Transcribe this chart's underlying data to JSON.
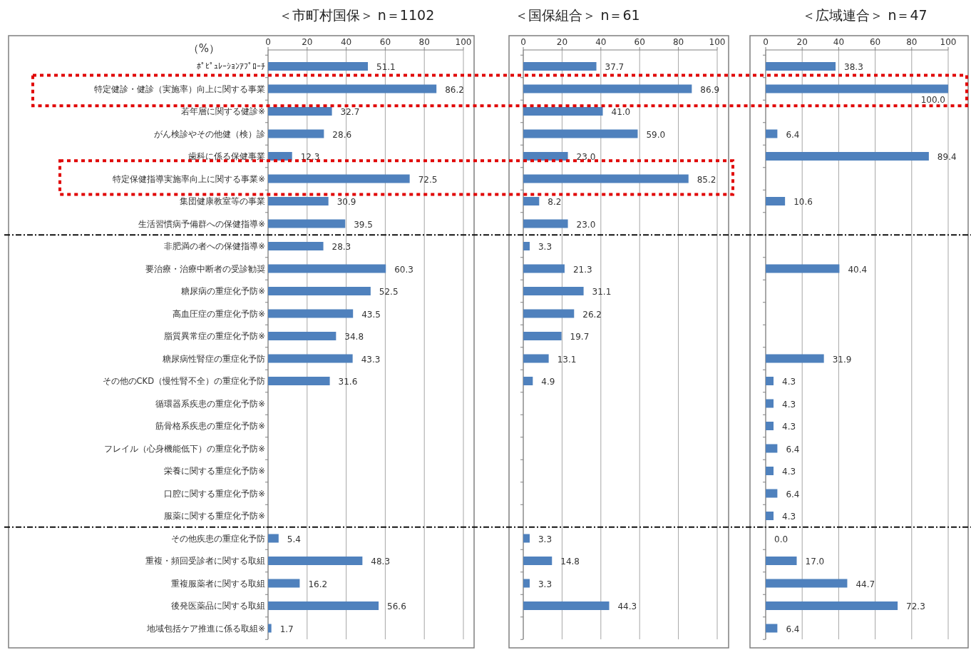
{
  "chart_data": [
    {
      "type": "bar",
      "orientation": "horizontal",
      "title": "＜市町村国保＞ n＝1102",
      "xlabel": "（%）",
      "color": "#4f81bd",
      "xlim": [
        0,
        100
      ],
      "xticks": [
        0,
        20,
        40,
        60,
        80,
        100
      ],
      "grid": "x",
      "categories": [
        "ﾎﾟﾋﾟｭﾚｰｼｮﾝｱﾌﾟﾛｰﾁ",
        "特定健診・健診（実施率）向上に関する事業",
        "若年層に関する健診※",
        "がん検診やその他健（検）診",
        "歯科に係る保健事業",
        "特定保健指導実施率向上に関する事業※",
        "集団健康教室等の事業",
        "生活習慣病予備群への保健指導※",
        "非肥満の者への保健指導※",
        "要治療・治療中断者の受診勧奨",
        "糖尿病の重症化予防※",
        "高血圧症の重症化予防※",
        "脂質異常症の重症化予防※",
        "糖尿病性腎症の重症化予防",
        "その他のCKD（慢性腎不全）の重症化予防",
        "循環器系疾患の重症化予防※",
        "筋骨格系疾患の重症化予防※",
        "フレイル（心身機能低下）の重症化予防※",
        "栄養に関する重症化予防※",
        "口腔に関する重症化予防※",
        "服薬に関する重症化予防※",
        "その他疾患の重症化予防",
        "重複・頻回受診者に関する取組",
        "重複服薬者に関する取組",
        "後発医薬品に関する取組",
        "地域包括ケア推進に係る取組※"
      ],
      "values": [
        51.1,
        86.2,
        32.7,
        28.6,
        12.3,
        72.5,
        30.9,
        39.5,
        28.3,
        60.3,
        52.5,
        43.5,
        34.8,
        43.3,
        31.6,
        null,
        null,
        null,
        null,
        null,
        null,
        5.4,
        48.3,
        16.2,
        56.6,
        1.7
      ],
      "value_labels": [
        "51.1",
        "86.2",
        "32.7",
        "28.6",
        "12.3",
        "72.5",
        "30.9",
        "39.5",
        "28.3",
        "60.3",
        "52.5",
        "43.5",
        "34.8",
        "43.3",
        "31.6",
        null,
        null,
        null,
        null,
        null,
        null,
        "5.4",
        "48.3",
        "16.2",
        "56.6",
        "1.7"
      ]
    },
    {
      "type": "bar",
      "orientation": "horizontal",
      "title": "＜国保組合＞ n＝61",
      "color": "#4f81bd",
      "xlim": [
        0,
        100
      ],
      "xticks": [
        0,
        20,
        40,
        60,
        80,
        100
      ],
      "grid": "x",
      "tick_labels": "x",
      "values": [
        37.7,
        86.9,
        41.0,
        59.0,
        23.0,
        85.2,
        8.2,
        23.0,
        3.3,
        21.3,
        31.1,
        26.2,
        19.7,
        13.1,
        4.9,
        null,
        null,
        null,
        null,
        null,
        null,
        3.3,
        14.8,
        3.3,
        44.3,
        null
      ],
      "value_labels": [
        "37.7",
        "86.9",
        "41.0",
        "59.0",
        "23.0",
        "85.2",
        "8.2",
        "23.0",
        "3.3",
        "21.3",
        "31.1",
        "26.2",
        "19.7",
        "13.1",
        "4.9",
        null,
        null,
        null,
        null,
        null,
        null,
        "3.3",
        "14.8",
        "3.3",
        "44.3",
        null
      ]
    },
    {
      "type": "bar",
      "orientation": "horizontal",
      "title": "＜広域連合＞ n＝47",
      "color": "#4f81bd",
      "xlim": [
        0,
        100
      ],
      "xticks": [
        0,
        20,
        40,
        60,
        80,
        100
      ],
      "grid": "x",
      "tick_labels": "x",
      "values": [
        38.3,
        100.0,
        null,
        6.4,
        89.4,
        null,
        10.6,
        null,
        null,
        40.4,
        null,
        null,
        null,
        31.9,
        4.3,
        4.3,
        4.3,
        6.4,
        4.3,
        6.4,
        4.3,
        0.0,
        17.0,
        44.7,
        72.3,
        6.4
      ],
      "value_labels": [
        "38.3",
        "100.0",
        null,
        "6.4",
        "89.4",
        null,
        "10.6",
        null,
        null,
        "40.4",
        null,
        null,
        null,
        "31.9",
        "4.3",
        "4.3",
        "4.3",
        "6.4",
        "4.3",
        "6.4",
        "4.3",
        "0.0",
        "17.0",
        "44.7",
        "72.3",
        "6.4"
      ]
    }
  ]
}
